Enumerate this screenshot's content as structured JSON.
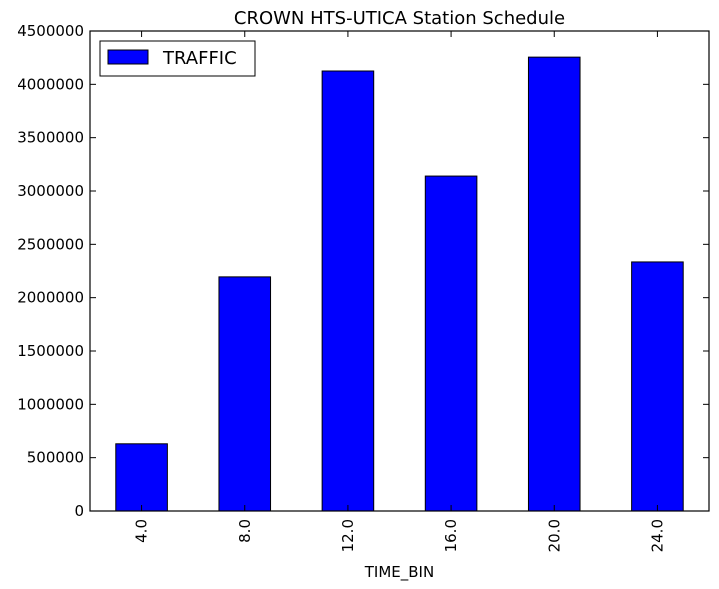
{
  "chart_data": {
    "type": "bar",
    "title": "CROWN HTS-UTICA Station Schedule",
    "xlabel": "TIME_BIN",
    "ylabel": "",
    "categories": [
      "4.0",
      "8.0",
      "12.0",
      "16.0",
      "20.0",
      "24.0"
    ],
    "series": [
      {
        "name": "TRAFFIC",
        "values": [
          630000,
          2195000,
          4125000,
          3140000,
          4255000,
          2335000
        ]
      }
    ],
    "ylim": [
      0,
      4500000
    ],
    "yticks": [
      "0",
      "500000",
      "1000000",
      "1500000",
      "2000000",
      "2500000",
      "3000000",
      "3500000",
      "4000000",
      "4500000"
    ],
    "bar_color": "#0000ff",
    "edge_color": "#000000",
    "grid": false,
    "legend_position": "top-left"
  }
}
